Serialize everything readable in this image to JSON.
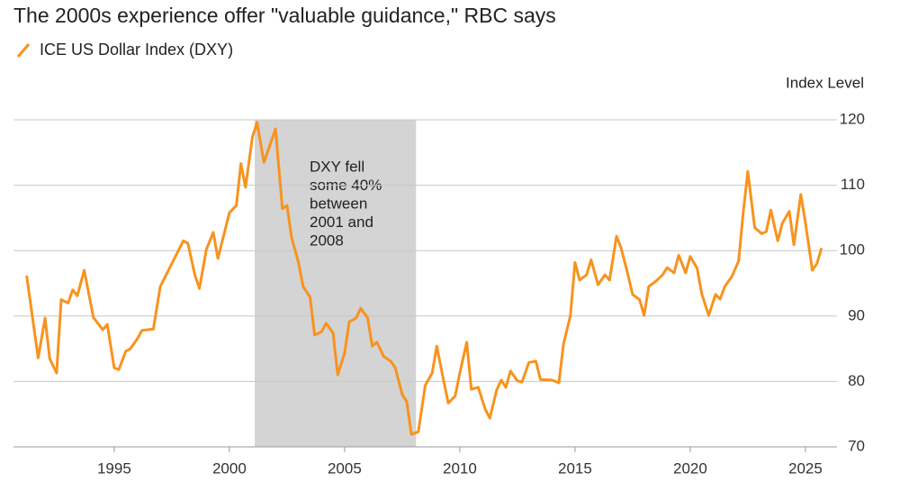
{
  "chart_data": {
    "type": "line",
    "title": "The 2000s experience offer \"valuable guidance,\" RBC says",
    "y_axis_label": "Index Level",
    "annotation": [
      "DXY fell",
      "some 40%",
      "between",
      "2001 and",
      "2008"
    ],
    "shaded_region": [
      2001.1,
      2008.1
    ],
    "xlim": [
      1990.63,
      2026.37
    ],
    "xticks": [
      1995,
      2000,
      2005,
      2010,
      2015,
      2020,
      2025
    ],
    "ylim": [
      70,
      120
    ],
    "yticks": [
      70,
      80,
      90,
      100,
      110,
      120
    ],
    "grid": true,
    "x": [
      1991.2,
      1991.7,
      1992.0,
      1992.2,
      1992.5,
      1992.7,
      1993.0,
      1993.2,
      1993.4,
      1993.7,
      1994.1,
      1994.5,
      1994.7,
      1995.0,
      1995.2,
      1995.5,
      1995.7,
      1996.0,
      1996.2,
      1996.7,
      1997.0,
      1997.4,
      1998.0,
      1998.2,
      1998.5,
      1998.7,
      1999.0,
      1999.3,
      1999.5,
      1999.8,
      2000.0,
      2000.3,
      2000.5,
      2000.7,
      2001.0,
      2001.2,
      2001.5,
      2002.0,
      2002.3,
      2002.5,
      2002.7,
      2003.0,
      2003.2,
      2003.5,
      2003.7,
      2004.0,
      2004.2,
      2004.5,
      2004.7,
      2005.0,
      2005.2,
      2005.5,
      2005.7,
      2006.0,
      2006.2,
      2006.4,
      2006.7,
      2007.0,
      2007.2,
      2007.5,
      2007.7,
      2007.9,
      2008.2,
      2008.5,
      2008.8,
      2009.0,
      2009.3,
      2009.5,
      2009.8,
      2010.0,
      2010.3,
      2010.5,
      2010.8,
      2011.1,
      2011.3,
      2011.6,
      2011.8,
      2012.0,
      2012.2,
      2012.5,
      2012.7,
      2013.0,
      2013.3,
      2013.5,
      2014.0,
      2014.3,
      2014.5,
      2014.8,
      2015.0,
      2015.2,
      2015.5,
      2015.7,
      2016.0,
      2016.3,
      2016.5,
      2016.8,
      2017.0,
      2017.3,
      2017.5,
      2017.8,
      2018.0,
      2018.2,
      2018.5,
      2018.8,
      2019.0,
      2019.3,
      2019.5,
      2019.8,
      2020.0,
      2020.3,
      2020.5,
      2020.8,
      2021.1,
      2021.3,
      2021.5,
      2021.8,
      2022.1,
      2022.3,
      2022.5,
      2022.8,
      2023.1,
      2023.3,
      2023.5,
      2023.8,
      2024.0,
      2024.3,
      2024.5,
      2024.8,
      2025.0,
      2025.3,
      2025.5,
      2025.7
    ],
    "series": [
      {
        "name": "ICE US Dollar Index (DXY)",
        "color": "#f7931e",
        "values": [
          96.2,
          83.6,
          89.7,
          83.5,
          81.3,
          92.5,
          92.0,
          94.0,
          93.1,
          97.0,
          89.8,
          87.9,
          88.7,
          82.1,
          81.8,
          84.6,
          85.0,
          86.5,
          87.8,
          88.0,
          94.5,
          97.3,
          101.5,
          101.1,
          96.3,
          94.2,
          100.2,
          102.8,
          98.8,
          103.0,
          105.8,
          106.9,
          113.3,
          109.7,
          117.4,
          119.6,
          113.5,
          118.6,
          106.4,
          106.9,
          102.0,
          98.2,
          94.5,
          92.9,
          87.1,
          87.6,
          88.9,
          87.4,
          81.0,
          84.3,
          89.1,
          89.7,
          91.2,
          89.7,
          85.4,
          86.0,
          83.8,
          83.1,
          82.1,
          78.0,
          76.9,
          71.9,
          72.3,
          79.4,
          81.3,
          85.4,
          80.1,
          76.7,
          77.8,
          81.3,
          86.0,
          78.8,
          79.1,
          75.8,
          74.4,
          78.7,
          80.2,
          79.1,
          81.6,
          80.1,
          79.9,
          82.9,
          83.1,
          80.3,
          80.2,
          79.8,
          85.7,
          90.1,
          98.2,
          95.5,
          96.3,
          98.6,
          94.8,
          96.3,
          95.5,
          102.2,
          100.4,
          96.3,
          93.3,
          92.5,
          90.1,
          94.5,
          95.3,
          96.3,
          97.4,
          96.6,
          99.3,
          96.6,
          99.1,
          97.3,
          93.4,
          90.1,
          93.3,
          92.6,
          94.5,
          96.0,
          98.4,
          105.8,
          112.1,
          103.5,
          102.6,
          102.9,
          106.2,
          101.5,
          104.2,
          106.0,
          100.9,
          108.6,
          104.3,
          97.0,
          98.0,
          100.4
        ]
      }
    ]
  }
}
